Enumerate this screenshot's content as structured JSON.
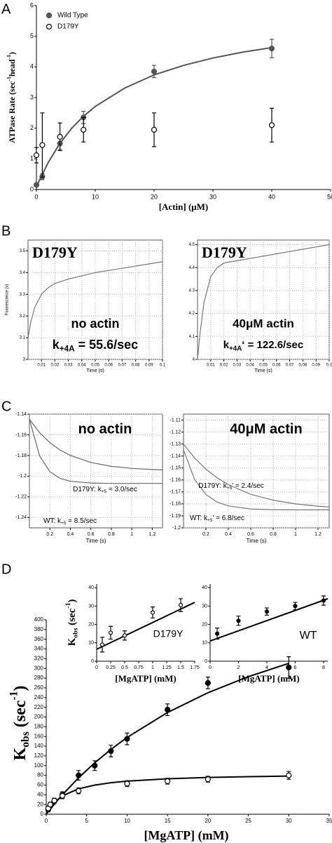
{
  "panel_labels": [
    "A",
    "B",
    "C",
    "D"
  ],
  "chart_data": [
    {
      "type": "scatter",
      "xlabel": "[Actin] (μM)",
      "ylabel": [
        "ATPase Rate (sec",
        {
          "text": "-1",
          "shift": "super"
        },
        "head",
        {
          "text": "-1",
          "shift": "super"
        },
        ")"
      ],
      "xlim": [
        0,
        50
      ],
      "xticks": [
        0,
        10,
        20,
        30,
        40,
        50
      ],
      "ylim": [
        0,
        6
      ],
      "yticks": [
        0,
        1,
        2,
        3,
        4,
        5,
        6
      ],
      "grid": false,
      "legend": "top-left",
      "series": [
        {
          "name": "Wild Type",
          "color": "#555555",
          "marker": "filled",
          "x": [
            0,
            1,
            4,
            8,
            20,
            40
          ],
          "values": [
            0.15,
            0.42,
            1.5,
            2.35,
            3.85,
            4.6
          ],
          "errors": [
            0.05,
            0.1,
            0.2,
            0.2,
            0.2,
            0.3
          ],
          "fit": {
            "x": [
              0,
              2,
              4,
              6,
              8,
              10,
              15,
              20,
              25,
              30,
              35,
              40
            ],
            "values": [
              0.1,
              0.88,
              1.51,
              2.0,
              2.39,
              2.71,
              3.31,
              3.74,
              4.05,
              4.29,
              4.48,
              4.63
            ]
          }
        },
        {
          "name": "D179Y",
          "color": "#000000",
          "marker": "open",
          "x": [
            0,
            1,
            4,
            8,
            20,
            40
          ],
          "values": [
            1.12,
            1.45,
            1.72,
            1.95,
            1.95,
            2.1
          ],
          "errors": [
            0.25,
            1.05,
            0.45,
            0.4,
            0.55,
            0.55
          ]
        }
      ]
    },
    {
      "type": "line",
      "title": "D179Y",
      "xlabel": "Time (s)",
      "ylabel": "Fluorescence (v)",
      "xlim": [
        0,
        0.1
      ],
      "xticks": [
        0.01,
        0.02,
        0.03,
        0.04,
        0.05,
        0.06,
        0.07,
        0.08,
        0.09,
        0.1
      ],
      "ylim": [
        3,
        3.55
      ],
      "yticks": [
        3,
        3.1,
        3.2,
        3.3,
        3.4,
        3.5
      ],
      "grid": true,
      "annotations": [
        "no actin",
        [
          "k",
          {
            "text": "+4A",
            "shift": "sub"
          },
          " = 55.6/sec"
        ]
      ],
      "series": [
        {
          "color": "#777777",
          "x": [
            0,
            0.002,
            0.005,
            0.01,
            0.015,
            0.02,
            0.03,
            0.04,
            0.05,
            0.06,
            0.07,
            0.08,
            0.09,
            0.1
          ],
          "values": [
            3.1,
            3.17,
            3.24,
            3.3,
            3.33,
            3.35,
            3.37,
            3.385,
            3.4,
            3.41,
            3.42,
            3.43,
            3.44,
            3.45
          ]
        }
      ]
    },
    {
      "type": "line",
      "title": "D179Y",
      "xlabel": "Time (s)",
      "xlim": [
        0,
        0.1
      ],
      "xticks": [
        0.01,
        0.02,
        0.03,
        0.04,
        0.05,
        0.06,
        0.07,
        0.08,
        0.09,
        0.1
      ],
      "ylim": [
        4,
        4.52
      ],
      "yticks": [
        4,
        4.1,
        4.2,
        4.3,
        4.4,
        4.5
      ],
      "grid": true,
      "annotations": [
        "40μM actin",
        [
          "k",
          {
            "text": "+4A",
            "shift": "sub"
          },
          "‘ = 122.6/sec"
        ]
      ],
      "series": [
        {
          "color": "#777777",
          "x": [
            0,
            0.002,
            0.005,
            0.01,
            0.015,
            0.02,
            0.03,
            0.04,
            0.05,
            0.06,
            0.07,
            0.08,
            0.09,
            0.1
          ],
          "values": [
            4,
            4.12,
            4.25,
            4.36,
            4.4,
            4.42,
            4.43,
            4.44,
            4.45,
            4.46,
            4.47,
            4.48,
            4.49,
            4.5
          ]
        }
      ]
    },
    {
      "type": "line",
      "title": "no actin",
      "xlabel": "Time (s)",
      "xlim": [
        0,
        1.3
      ],
      "xticks": [
        0.2,
        0.4,
        0.6,
        0.8,
        1,
        1.2
      ],
      "ylim": [
        -1.25,
        -1.14
      ],
      "yticks": [
        -1.14,
        -1.16,
        -1.18,
        -1.2,
        -1.22,
        -1.24
      ],
      "grid": true,
      "annotations": [
        [
          "D179Y: k",
          {
            "text": "+5",
            "shift": "sub"
          },
          " = 3.0/sec"
        ],
        [
          "WT: k",
          {
            "text": "+5",
            "shift": "sub"
          },
          " = 8.5/sec"
        ]
      ],
      "series": [
        {
          "color": "#666666",
          "x": [
            0,
            0.1,
            0.2,
            0.3,
            0.4,
            0.6,
            0.8,
            1,
            1.2,
            1.3
          ],
          "values": [
            -1.145,
            -1.158,
            -1.1676,
            -1.1747,
            -1.1799,
            -1.1867,
            -1.1905,
            -1.1925,
            -1.1936,
            -1.194
          ]
        },
        {
          "color": "#666666",
          "x": [
            0,
            0.1,
            0.2,
            0.3,
            0.4,
            0.6,
            0.8,
            1,
            1.2,
            1.3
          ],
          "values": [
            -1.145,
            -1.1805,
            -1.1957,
            -1.2022,
            -1.205,
            -1.2066,
            -1.207,
            -1.207,
            -1.207,
            -1.207
          ]
        }
      ]
    },
    {
      "type": "line",
      "title": "40μM actin",
      "xlabel": "Time (s)",
      "xlim": [
        0,
        1.3
      ],
      "xticks": [
        0.2,
        0.4,
        0.6,
        0.8,
        1,
        1.2
      ],
      "ylim": [
        -1.2,
        -1.105
      ],
      "yticks": [
        -1.11,
        -1.12,
        -1.13,
        -1.14,
        -1.15,
        -1.16,
        -1.17,
        -1.18,
        -1.19,
        -1.2
      ],
      "grid": true,
      "annotations": [
        [
          "D179Y: k",
          {
            "text": "+5",
            "shift": "sub"
          },
          "' = 2.4/sec"
        ],
        [
          "WT: k",
          {
            "text": "+5",
            "shift": "sub"
          },
          "' = 6.8/sec"
        ]
      ],
      "series": [
        {
          "color": "#777777",
          "x": [
            0,
            0.1,
            0.2,
            0.3,
            0.4,
            0.6,
            0.8,
            1,
            1.2,
            1.3
          ],
          "values": [
            -1.13,
            -1.1417,
            -1.151,
            -1.1582,
            -1.1639,
            -1.172,
            -1.1769,
            -1.18,
            -1.1819,
            -1.1826
          ]
        },
        {
          "color": "#777777",
          "x": [
            0,
            0.1,
            0.2,
            0.3,
            0.4,
            0.6,
            0.8,
            1,
            1.2,
            1.3
          ],
          "values": [
            -1.135,
            -1.1597,
            -1.1722,
            -1.1785,
            -1.1817,
            -1.1842,
            -1.1848,
            -1.185,
            -1.185,
            -1.185
          ]
        }
      ]
    },
    {
      "type": "scatter",
      "title": "D179Y",
      "xlabel": "[MgATP] (mM)",
      "ylabel": [
        "K",
        {
          "text": "obs",
          "shift": "sub"
        },
        " (sec",
        {
          "text": "-1",
          "shift": "super"
        },
        ")"
      ],
      "xlim": [
        0,
        1.75
      ],
      "xticks": [
        0,
        0.25,
        0.5,
        0.75,
        1,
        1.25,
        1.5,
        1.75
      ],
      "ylim": [
        0,
        42
      ],
      "yticks": [
        0,
        10,
        20,
        30,
        40
      ],
      "grid": false,
      "series": [
        {
          "color": "#000000",
          "marker": "open",
          "x": [
            0.1,
            0.25,
            0.5,
            1,
            1.5
          ],
          "values": [
            9,
            15.5,
            14,
            26.5,
            30.5
          ],
          "errors": [
            4,
            3.5,
            2.5,
            3,
            3.5
          ],
          "fit": {
            "x": [
              0,
              1.75
            ],
            "values": [
              6.5,
              32
            ]
          }
        }
      ]
    },
    {
      "type": "scatter",
      "title": "WT",
      "xlabel": "[MgATP] (mM)",
      "xlim": [
        0,
        8.3
      ],
      "xticks": [
        0,
        2,
        4,
        6,
        8
      ],
      "ylim": [
        0,
        42
      ],
      "yticks": [
        0,
        10,
        20,
        30,
        40
      ],
      "grid": false,
      "series": [
        {
          "color": "#000000",
          "marker": "filled",
          "x": [
            0.5,
            2,
            4,
            6,
            8
          ],
          "values": [
            15,
            22,
            27,
            30,
            33
          ],
          "errors": [
            3,
            2.5,
            2,
            2,
            2.5
          ],
          "fit": {
            "x": [
              0,
              8.3
            ],
            "values": [
              11,
              34
            ]
          }
        }
      ]
    },
    {
      "type": "scatter",
      "xlabel": "[MgATP] (mM)",
      "ylabel": [
        "K",
        {
          "text": "obs",
          "shift": "sub"
        },
        " (sec",
        {
          "text": "-1",
          "shift": "super"
        },
        ")"
      ],
      "xlim": [
        0,
        35
      ],
      "xticks": [
        0,
        5,
        10,
        15,
        20,
        25,
        30,
        35
      ],
      "ylim": [
        0,
        400
      ],
      "yticks": [
        0,
        20,
        40,
        60,
        80,
        100,
        120,
        140,
        160,
        180,
        200,
        220,
        240,
        260,
        280,
        300,
        320,
        340,
        360,
        380,
        400
      ],
      "grid": false,
      "series": [
        {
          "color": "#000000",
          "marker": "filled",
          "x": [
            0.25,
            0.5,
            1,
            2,
            4,
            6,
            8,
            10,
            15,
            20,
            30
          ],
          "values": [
            10,
            18,
            27,
            40,
            80,
            100,
            130,
            155,
            215,
            270,
            302
          ],
          "errors": [
            5,
            5,
            5,
            6,
            10,
            10,
            12,
            12,
            12,
            12,
            22
          ],
          "fit": {
            "x": [
              0,
              1,
              2,
              4,
              6,
              8,
              10,
              15,
              20,
              25,
              30
            ],
            "values": [
              0,
              20.7,
              40,
              75,
              105.9,
              133.3,
              157.9,
              209.3,
              250,
              283,
              310.3
            ]
          }
        },
        {
          "color": "#000000",
          "marker": "open",
          "x": [
            0.25,
            0.5,
            1,
            2,
            4,
            10,
            15,
            20,
            30
          ],
          "values": [
            12,
            20,
            28,
            38,
            48,
            63,
            68,
            72,
            80
          ],
          "errors": [
            4,
            4,
            5,
            6,
            6,
            6,
            6,
            6,
            8
          ],
          "fit": {
            "x": [
              0,
              1,
              2,
              4,
              6,
              8,
              10,
              15,
              20,
              25,
              30
            ],
            "values": [
              0,
              24.3,
              37.8,
              52.3,
              60,
              64.8,
              68,
              72.9,
              75.6,
              77.3,
              78.5
            ]
          }
        }
      ]
    }
  ]
}
